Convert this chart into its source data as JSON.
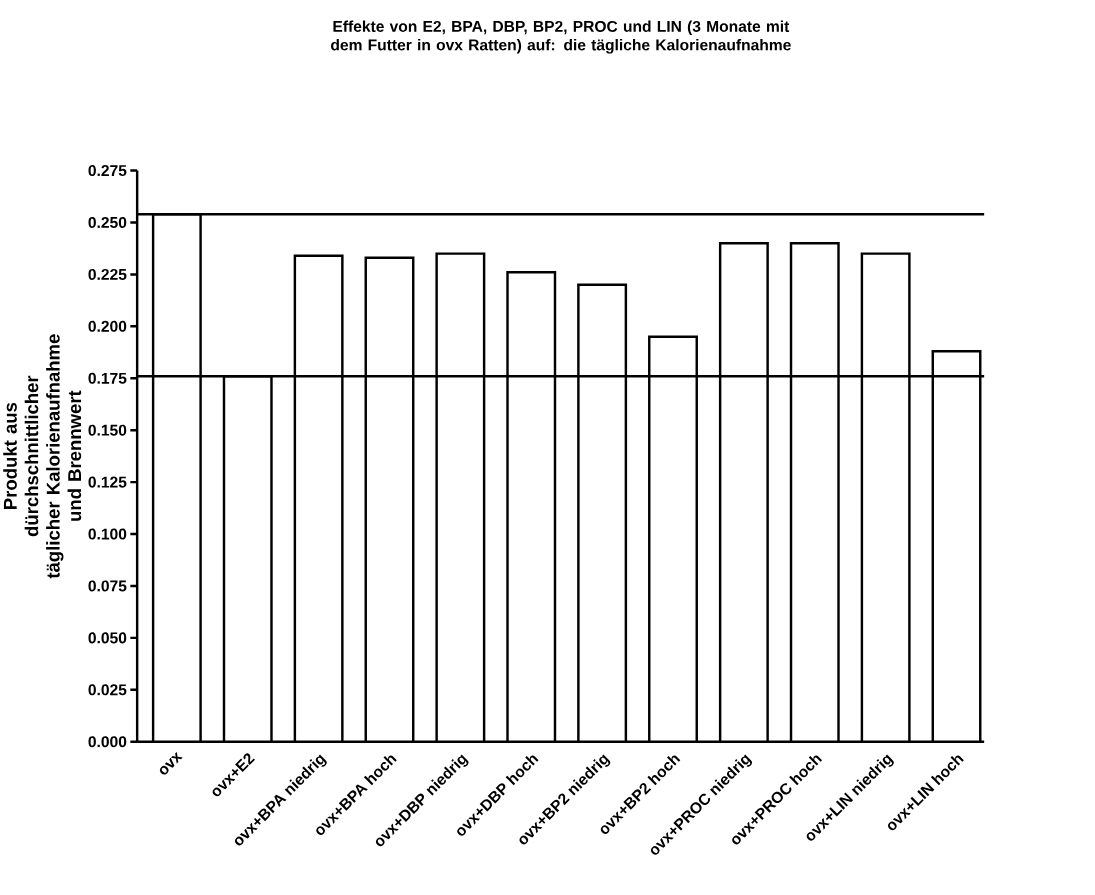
{
  "chart_data": {
    "type": "bar",
    "title": "Effekte von E2, BPA, DBP, BP2, PROC und LIN (3 Monate mit dem Futter in ovx Ratten) auf: die tägliche Kalorienaufnahme",
    "ylabel": "Produkt aus dürchschnittlicher täglicher Kalorienaufnahme und Brennwert",
    "categories": [
      "ovx",
      "ovx+E2",
      "ovx+BPA niedrig",
      "ovx+BPA hoch",
      "ovx+DBP niedrig",
      "ovx+DBP hoch",
      "ovx+BP2 niedrig",
      "ovx+BP2 hoch",
      "ovx+PROC niedrig",
      "ovx+PROC hoch",
      "ovx+LIN niedrig",
      "ovx+LIN hoch"
    ],
    "values": [
      0.254,
      0.176,
      0.234,
      0.233,
      0.235,
      0.226,
      0.22,
      0.195,
      0.24,
      0.24,
      0.235,
      0.188
    ],
    "color": "#ffffff",
    "ylim": [
      0,
      0.275
    ],
    "yticks": [
      {
        "value": 0,
        "label": "0.000"
      },
      {
        "value": 0.025,
        "label": "0.025"
      },
      {
        "value": 0.05,
        "label": "0.050"
      },
      {
        "value": 0.075,
        "label": "0.075"
      },
      {
        "value": 0.1,
        "label": "0.100"
      },
      {
        "value": 0.125,
        "label": "0.125"
      },
      {
        "value": 0.15,
        "label": "0.150"
      },
      {
        "value": 0.175,
        "label": "0.175"
      },
      {
        "value": 0.2,
        "label": "0.200"
      },
      {
        "value": 0.225,
        "label": "0.225"
      },
      {
        "value": 0.25,
        "label": "0.250"
      },
      {
        "value": 0.275,
        "label": "0.275"
      }
    ],
    "ref_lines": [
      {
        "axis": "y",
        "value": 0.254,
        "color": "#000000"
      },
      {
        "axis": "y",
        "value": 0.176,
        "color": "#000000"
      }
    ]
  }
}
